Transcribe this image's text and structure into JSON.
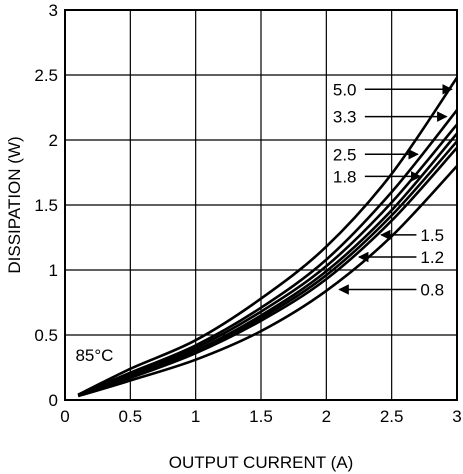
{
  "chart_data": {
    "type": "line",
    "xlabel": "OUTPUT CURRENT (A)",
    "ylabel": "DISSIPATION (W)",
    "xlim": [
      0,
      3
    ],
    "ylim": [
      0,
      3
    ],
    "xticks": [
      "0",
      "0.5",
      "1",
      "1.5",
      "2",
      "2.5",
      "3"
    ],
    "yticks": [
      "0",
      "0.5",
      "1",
      "1.5",
      "2",
      "2.5",
      "3"
    ],
    "grid": true,
    "annotation": "85°C",
    "series": [
      {
        "name": "5.0",
        "x": [
          0.1,
          0.5,
          1.0,
          1.5,
          2.0,
          2.5,
          3.0
        ],
        "y": [
          0.04,
          0.24,
          0.46,
          0.78,
          1.18,
          1.74,
          2.48
        ]
      },
      {
        "name": "3.3",
        "x": [
          0.1,
          0.5,
          1.0,
          1.5,
          2.0,
          2.5,
          3.0
        ],
        "y": [
          0.04,
          0.21,
          0.42,
          0.71,
          1.08,
          1.6,
          2.23
        ]
      },
      {
        "name": "2.5",
        "x": [
          0.1,
          0.5,
          1.0,
          1.5,
          2.0,
          2.5,
          3.0
        ],
        "y": [
          0.04,
          0.2,
          0.4,
          0.68,
          1.03,
          1.52,
          2.12
        ]
      },
      {
        "name": "1.8",
        "x": [
          0.1,
          0.5,
          1.0,
          1.5,
          2.0,
          2.5,
          3.0
        ],
        "y": [
          0.04,
          0.19,
          0.38,
          0.65,
          0.99,
          1.46,
          2.05
        ]
      },
      {
        "name": "1.5",
        "x": [
          0.1,
          0.5,
          1.0,
          1.5,
          2.0,
          2.5,
          3.0
        ],
        "y": [
          0.04,
          0.18,
          0.37,
          0.63,
          0.96,
          1.42,
          1.99
        ]
      },
      {
        "name": "1.2",
        "x": [
          0.1,
          0.5,
          1.0,
          1.5,
          2.0,
          2.5,
          3.0
        ],
        "y": [
          0.04,
          0.17,
          0.36,
          0.61,
          0.93,
          1.38,
          1.94
        ]
      },
      {
        "name": "0.8",
        "x": [
          0.1,
          0.5,
          1.0,
          1.5,
          2.0,
          2.5,
          3.0
        ],
        "y": [
          0.03,
          0.15,
          0.31,
          0.53,
          0.84,
          1.26,
          1.8
        ]
      }
    ],
    "labels": [
      {
        "text": "5.0",
        "x": 2.05,
        "y": 2.39,
        "tipX": 2.96,
        "tipY": 2.39,
        "dir": "right"
      },
      {
        "text": "3.3",
        "x": 2.05,
        "y": 2.18,
        "tipX": 2.92,
        "tipY": 2.18,
        "dir": "right"
      },
      {
        "text": "2.5",
        "x": 2.05,
        "y": 1.89,
        "tipX": 2.7,
        "tipY": 1.89,
        "dir": "right"
      },
      {
        "text": "1.8",
        "x": 2.05,
        "y": 1.72,
        "tipX": 2.72,
        "tipY": 1.72,
        "dir": "right"
      },
      {
        "text": "1.5",
        "x": 2.72,
        "y": 1.27,
        "tipX": 2.42,
        "tipY": 1.27,
        "dir": "left"
      },
      {
        "text": "1.2",
        "x": 2.72,
        "y": 1.1,
        "tipX": 2.25,
        "tipY": 1.1,
        "dir": "left"
      },
      {
        "text": "0.8",
        "x": 2.72,
        "y": 0.85,
        "tipX": 2.1,
        "tipY": 0.85,
        "dir": "left"
      }
    ]
  }
}
